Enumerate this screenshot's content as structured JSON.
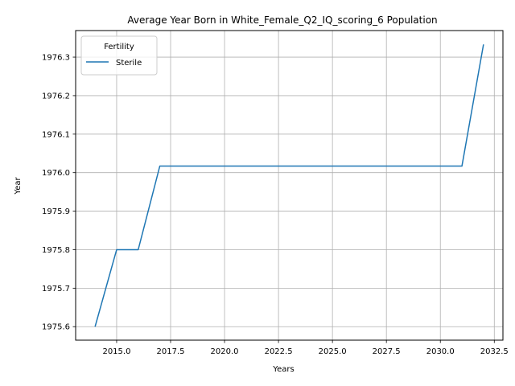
{
  "chart_data": {
    "type": "line",
    "title": "Average Year Born in White_Female_Q2_IQ_scoring_6 Population",
    "xlabel": "Years",
    "ylabel": "Year",
    "xlim": [
      2013.1,
      2032.9
    ],
    "ylim": [
      1975.565,
      1976.369
    ],
    "xticks": [
      2015.0,
      2017.5,
      2020.0,
      2022.5,
      2025.0,
      2027.5,
      2030.0,
      2032.5
    ],
    "xtick_labels": [
      "2015.0",
      "2017.5",
      "2020.0",
      "2022.5",
      "2025.0",
      "2027.5",
      "2030.0",
      "2032.5"
    ],
    "yticks": [
      1975.6,
      1975.7,
      1975.8,
      1975.9,
      1976.0,
      1976.1,
      1976.2,
      1976.3
    ],
    "ytick_labels": [
      "1975.6",
      "1975.7",
      "1975.8",
      "1975.9",
      "1976.0",
      "1976.1",
      "1976.2",
      "1976.3"
    ],
    "grid": true,
    "legend": {
      "title": "Fertility",
      "placement": "upper-left"
    },
    "series": [
      {
        "name": "Sterile",
        "color": "#1f77b4",
        "x": [
          2014,
          2015,
          2016,
          2017,
          2018,
          2019,
          2020,
          2021,
          2022,
          2023,
          2024,
          2025,
          2026,
          2027,
          2028,
          2029,
          2030,
          2031,
          2032
        ],
        "y": [
          1975.6,
          1975.8,
          1975.8,
          1976.017,
          1976.017,
          1976.017,
          1976.017,
          1976.017,
          1976.017,
          1976.017,
          1976.017,
          1976.017,
          1976.017,
          1976.017,
          1976.017,
          1976.017,
          1976.017,
          1976.017,
          1976.333
        ]
      }
    ]
  }
}
